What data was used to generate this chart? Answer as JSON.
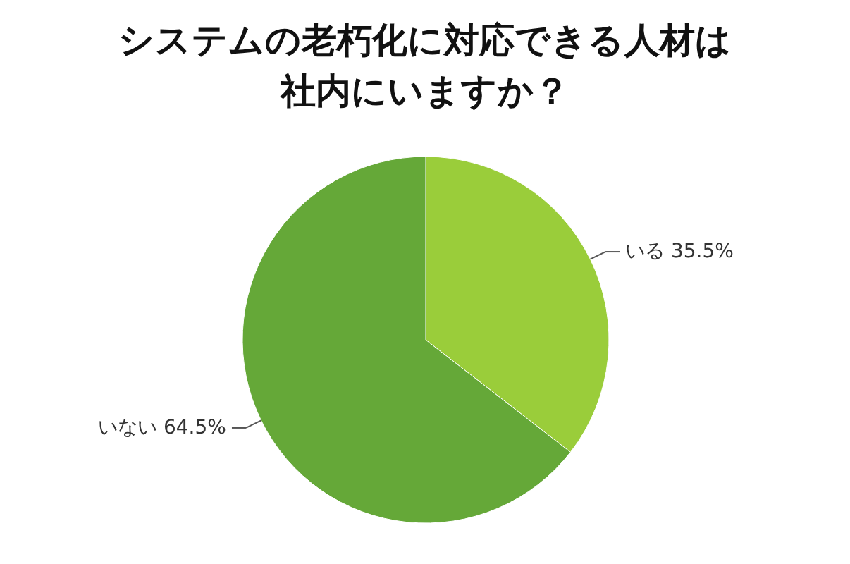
{
  "chart_data": {
    "type": "pie",
    "title": "システムの老朽化に対応できる人材は社内にいますか？",
    "categories": [
      "いる",
      "いない"
    ],
    "values": [
      35.5,
      64.5
    ],
    "value_labels": [
      "35.5%",
      "64.5%"
    ],
    "colors": [
      "#9acd3a",
      "#65a838"
    ],
    "legend": false
  }
}
